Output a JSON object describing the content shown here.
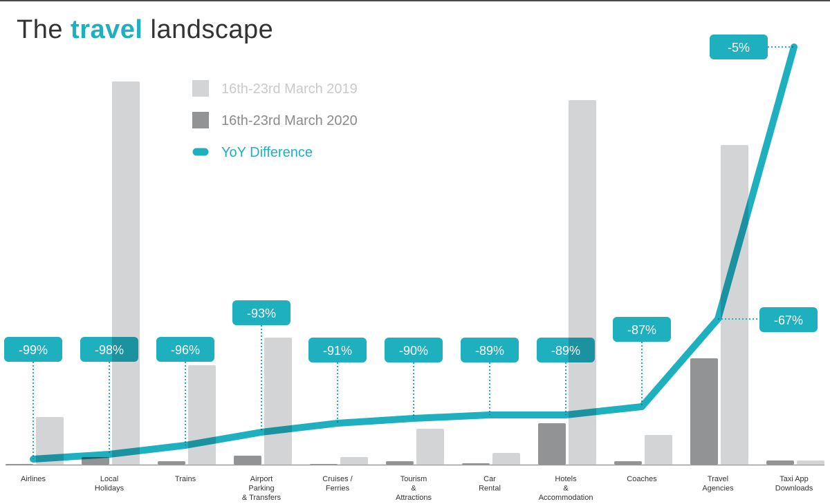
{
  "title": {
    "pre": "The ",
    "highlight": "travel",
    "post": " landscape"
  },
  "colors": {
    "y2019": "#d3d4d6",
    "y2020": "#929395",
    "yoy": "#1fb0bf",
    "axis": "#9a9a9a"
  },
  "chart_data": {
    "type": "bar",
    "title": "The travel landscape",
    "xlabel": "",
    "ylabel": "",
    "grid": false,
    "legend_placement": "top-left",
    "categories": [
      "Airlines",
      "Local\nHolidays",
      "Trains",
      "Airport\nParking\n& Transfers",
      "Cruises /\nFerries",
      "Tourism\n&\nAttractions",
      "Car\nRental",
      "Hotels\n&\nAccommodation",
      "Coaches",
      "Travel\nAgencies",
      "Taxi App\nDownloads"
    ],
    "series": [
      {
        "name": "16th-23rd March 2019",
        "type": "bar",
        "values": [
          69,
          555,
          144,
          184,
          11,
          52,
          17,
          528,
          43,
          463,
          6
        ]
      },
      {
        "name": "16th-23rd March 2020",
        "type": "bar",
        "values": [
          1,
          11,
          5,
          13,
          1,
          5,
          2,
          60,
          5,
          154,
          6
        ]
      },
      {
        "name": "YoY Difference",
        "type": "line",
        "values": [
          8,
          15,
          28,
          47,
          60,
          67,
          72,
          72,
          84,
          211,
          605
        ],
        "labels": [
          "-99%",
          "-98%",
          "-96%",
          "-93%",
          "-91%",
          "-90%",
          "-89%",
          "-89%",
          "-87%",
          "-67%",
          "-5%"
        ]
      }
    ],
    "ylim": [
      0,
      605
    ]
  }
}
